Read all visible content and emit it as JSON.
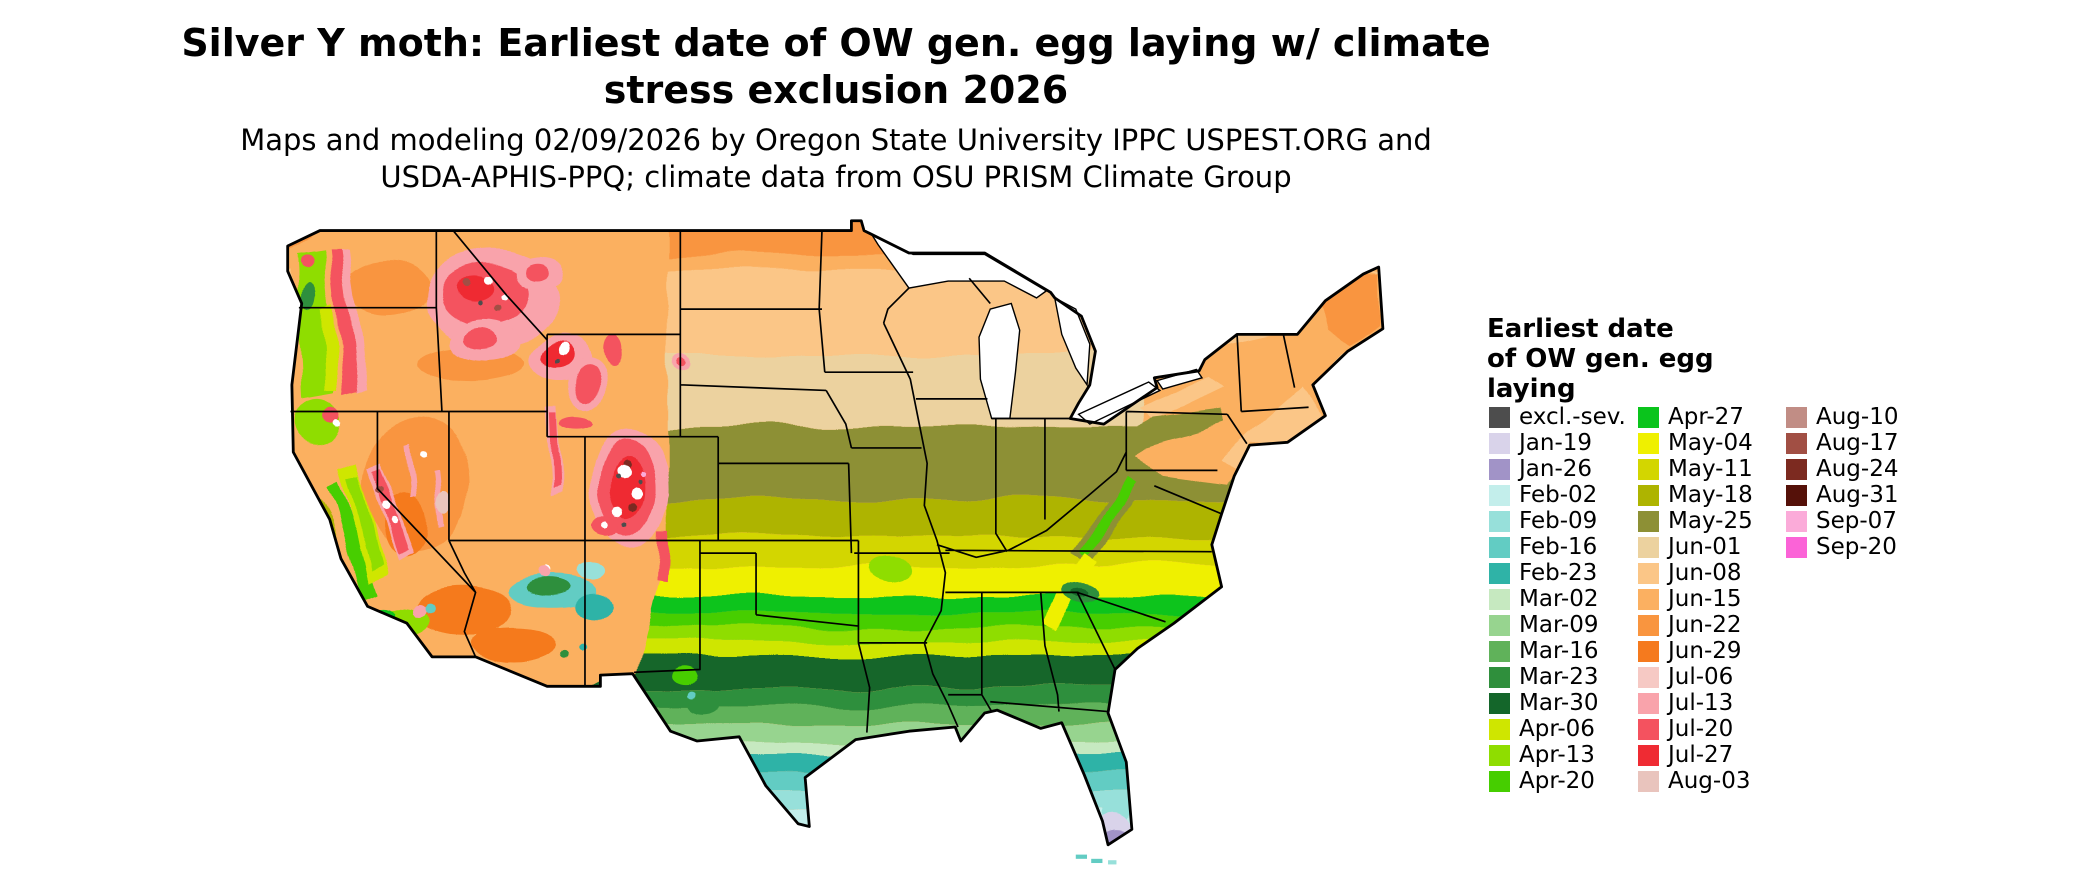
{
  "header": {
    "title_line1": "Silver Y moth: Earliest date of OW gen. egg laying w/ climate",
    "title_line2": "stress exclusion 2026",
    "subtitle_line1": "Maps and modeling 02/09/2026 by Oregon State University IPPC USPEST.ORG and",
    "subtitle_line2": "USDA-APHIS-PPQ; climate data from OSU PRISM Climate Group"
  },
  "legend": {
    "title_line1": "Earliest date",
    "title_line2": "of OW gen. egg",
    "title_line3": "laying",
    "columns": [
      {
        "items": [
          {
            "label": "excl.-sev.",
            "color": "#4d4d4d"
          },
          {
            "label": "Jan-19",
            "color": "#d9d3ea"
          },
          {
            "label": "Jan-26",
            "color": "#a193c7"
          },
          {
            "label": "Feb-02",
            "color": "#c3eeeb"
          },
          {
            "label": "Feb-09",
            "color": "#97e0da"
          },
          {
            "label": "Feb-16",
            "color": "#62ccc3"
          },
          {
            "label": "Feb-23",
            "color": "#2fb3a7"
          },
          {
            "label": "Mar-02",
            "color": "#c6e9c0"
          },
          {
            "label": "Mar-09",
            "color": "#97d48f"
          },
          {
            "label": "Mar-16",
            "color": "#60b25a"
          },
          {
            "label": "Mar-23",
            "color": "#2f8f3c"
          },
          {
            "label": "Mar-30",
            "color": "#14662a"
          },
          {
            "label": "Apr-06",
            "color": "#cfe600"
          },
          {
            "label": "Apr-13",
            "color": "#8fdd00"
          },
          {
            "label": "Apr-20",
            "color": "#46ce00"
          }
        ]
      },
      {
        "items": [
          {
            "label": "Apr-27",
            "color": "#0ac41c"
          },
          {
            "label": "May-04",
            "color": "#eff000"
          },
          {
            "label": "May-11",
            "color": "#d3d600"
          },
          {
            "label": "May-18",
            "color": "#aeb400"
          },
          {
            "label": "May-25",
            "color": "#8d9035"
          },
          {
            "label": "Jun-01",
            "color": "#ecd29f"
          },
          {
            "label": "Jun-08",
            "color": "#fbc687"
          },
          {
            "label": "Jun-15",
            "color": "#fbb061"
          },
          {
            "label": "Jun-22",
            "color": "#f9953f"
          },
          {
            "label": "Jun-29",
            "color": "#f57a1e"
          },
          {
            "label": "Jul-06",
            "color": "#f6c9c4"
          },
          {
            "label": "Jul-13",
            "color": "#f9a3ab"
          },
          {
            "label": "Jul-20",
            "color": "#f4525f"
          },
          {
            "label": "Jul-27",
            "color": "#ef2b33"
          },
          {
            "label": "Aug-03",
            "color": "#e9c4bd"
          }
        ]
      },
      {
        "items": [
          {
            "label": "Aug-10",
            "color": "#c18d85"
          },
          {
            "label": "Aug-17",
            "color": "#a14f44"
          },
          {
            "label": "Aug-24",
            "color": "#7c2a20"
          },
          {
            "label": "Aug-31",
            "color": "#551109"
          },
          {
            "label": "Sep-07",
            "color": "#fbabd9"
          },
          {
            "label": "Sep-20",
            "color": "#fb63d7"
          }
        ]
      }
    ]
  }
}
